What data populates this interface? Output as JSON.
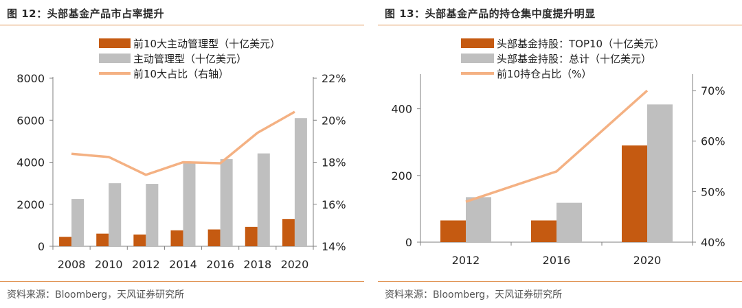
{
  "colors": {
    "bar_dark": "#c55a11",
    "bar_light": "#bfbfbf",
    "line": "#f4b183",
    "rule": "#e0914f",
    "axis": "#7f7f7f"
  },
  "left_figure": {
    "title": "图 12：头部基金产品市占率提升",
    "source": "资料来源：Bloomberg，天风证券研究所"
  },
  "right_figure": {
    "title": "图 13：头部基金产品的持仓集中度提升明显",
    "source": "资料来源：Bloomberg，天风证券研究所"
  },
  "chart_data": [
    {
      "type": "bar",
      "categories": [
        "2008",
        "2010",
        "2012",
        "2014",
        "2016",
        "2018",
        "2020"
      ],
      "series": [
        {
          "name": "前10大主动管理型（十亿美元）",
          "kind": "bar",
          "axis": "left",
          "color": "#c55a11",
          "values": [
            450,
            600,
            560,
            760,
            800,
            920,
            1300
          ]
        },
        {
          "name": "主动管理型（十亿美元）",
          "kind": "bar",
          "axis": "left",
          "color": "#bfbfbf",
          "values": [
            2250,
            3000,
            2970,
            3950,
            4150,
            4420,
            6100
          ]
        },
        {
          "name": "前10大占比（右轴）",
          "kind": "line",
          "axis": "right",
          "color": "#f4b183",
          "values": [
            18.4,
            18.25,
            17.4,
            18.0,
            17.95,
            19.4,
            20.4
          ]
        }
      ],
      "left_axis": {
        "min": 0,
        "max": 8000,
        "ticks": [
          "0",
          "2000",
          "4000",
          "6000",
          "8000"
        ]
      },
      "right_axis": {
        "min": 14,
        "max": 22,
        "ticks": [
          "14%",
          "16%",
          "18%",
          "20%",
          "22%"
        ]
      },
      "legend_position": "top",
      "grid": false
    },
    {
      "type": "bar",
      "categories": [
        "2012",
        "2016",
        "2020"
      ],
      "series": [
        {
          "name": "头部基金持股：TOP10（十亿美元）",
          "kind": "bar",
          "axis": "left",
          "color": "#c55a11",
          "values": [
            65,
            65,
            290
          ]
        },
        {
          "name": "头部基金持股：总计（十亿美元）",
          "kind": "bar",
          "axis": "left",
          "color": "#bfbfbf",
          "values": [
            135,
            118,
            413
          ]
        },
        {
          "name": "前10持仓占比（%）",
          "kind": "line",
          "axis": "right",
          "color": "#f4b183",
          "values": [
            48.0,
            54.0,
            70.0
          ]
        }
      ],
      "left_axis": {
        "min": 0,
        "max": 500,
        "ticks": [
          "0",
          "200",
          "400"
        ]
      },
      "right_axis": {
        "min": 40,
        "max": 73,
        "ticks": [
          "40%",
          "50%",
          "60%",
          "70%"
        ]
      },
      "legend_position": "top",
      "grid": false
    }
  ]
}
